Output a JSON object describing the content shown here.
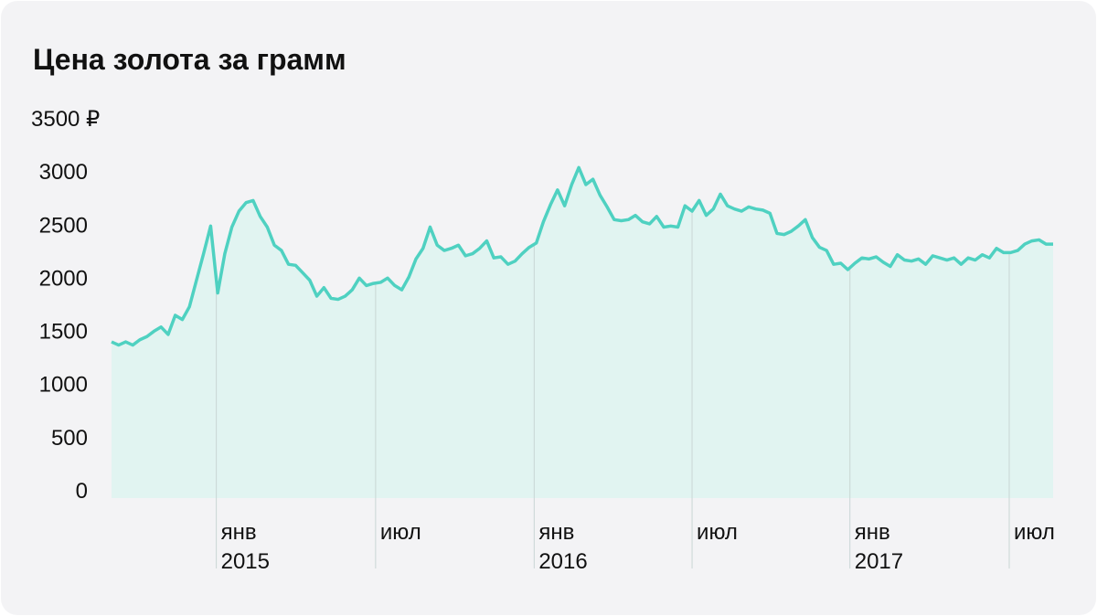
{
  "chart_data": {
    "type": "area",
    "title": "Цена золота за грамм",
    "color": "#4fd1c1",
    "fill": "#e1f4f1",
    "xlim": [
      0,
      133
    ],
    "xticks": [
      {
        "value": 14.8,
        "label": "янв",
        "year": "2015"
      },
      {
        "value": 37.3,
        "label": "июл"
      },
      {
        "value": 59.7,
        "label": "янв",
        "year": "2016"
      },
      {
        "value": 82.0,
        "label": "июл"
      },
      {
        "value": 104.3,
        "label": "янв",
        "year": "2017"
      },
      {
        "value": 126.8,
        "label": "июл"
      }
    ],
    "ylim": [
      0,
      3500
    ],
    "yticks": [
      0,
      500,
      1000,
      1500,
      2000,
      2500,
      3000,
      {
        "value": 3500,
        "label": "3500 ₽"
      }
    ],
    "values": [
      1470,
      1440,
      1470,
      1440,
      1490,
      1520,
      1570,
      1610,
      1540,
      1720,
      1680,
      1800,
      2050,
      2300,
      2560,
      1930,
      2300,
      2550,
      2700,
      2780,
      2800,
      2650,
      2550,
      2380,
      2330,
      2200,
      2190,
      2120,
      2050,
      1900,
      1980,
      1880,
      1870,
      1900,
      1960,
      2070,
      2000,
      2020,
      2030,
      2070,
      2000,
      1960,
      2080,
      2250,
      2350,
      2550,
      2380,
      2330,
      2350,
      2380,
      2280,
      2300,
      2350,
      2420,
      2260,
      2270,
      2200,
      2230,
      2300,
      2360,
      2400,
      2600,
      2760,
      2900,
      2750,
      2950,
      3110,
      2950,
      3000,
      2850,
      2740,
      2620,
      2610,
      2620,
      2660,
      2600,
      2580,
      2650,
      2550,
      2560,
      2550,
      2750,
      2700,
      2800,
      2660,
      2720,
      2860,
      2750,
      2720,
      2700,
      2740,
      2720,
      2710,
      2680,
      2490,
      2480,
      2510,
      2560,
      2620,
      2450,
      2360,
      2330,
      2200,
      2210,
      2150,
      2210,
      2260,
      2250,
      2270,
      2220,
      2180,
      2290,
      2240,
      2230,
      2250,
      2200,
      2280,
      2260,
      2240,
      2260,
      2200,
      2260,
      2240,
      2290,
      2260,
      2350,
      2310,
      2310,
      2330,
      2390,
      2420,
      2430,
      2390,
      2390
    ]
  }
}
